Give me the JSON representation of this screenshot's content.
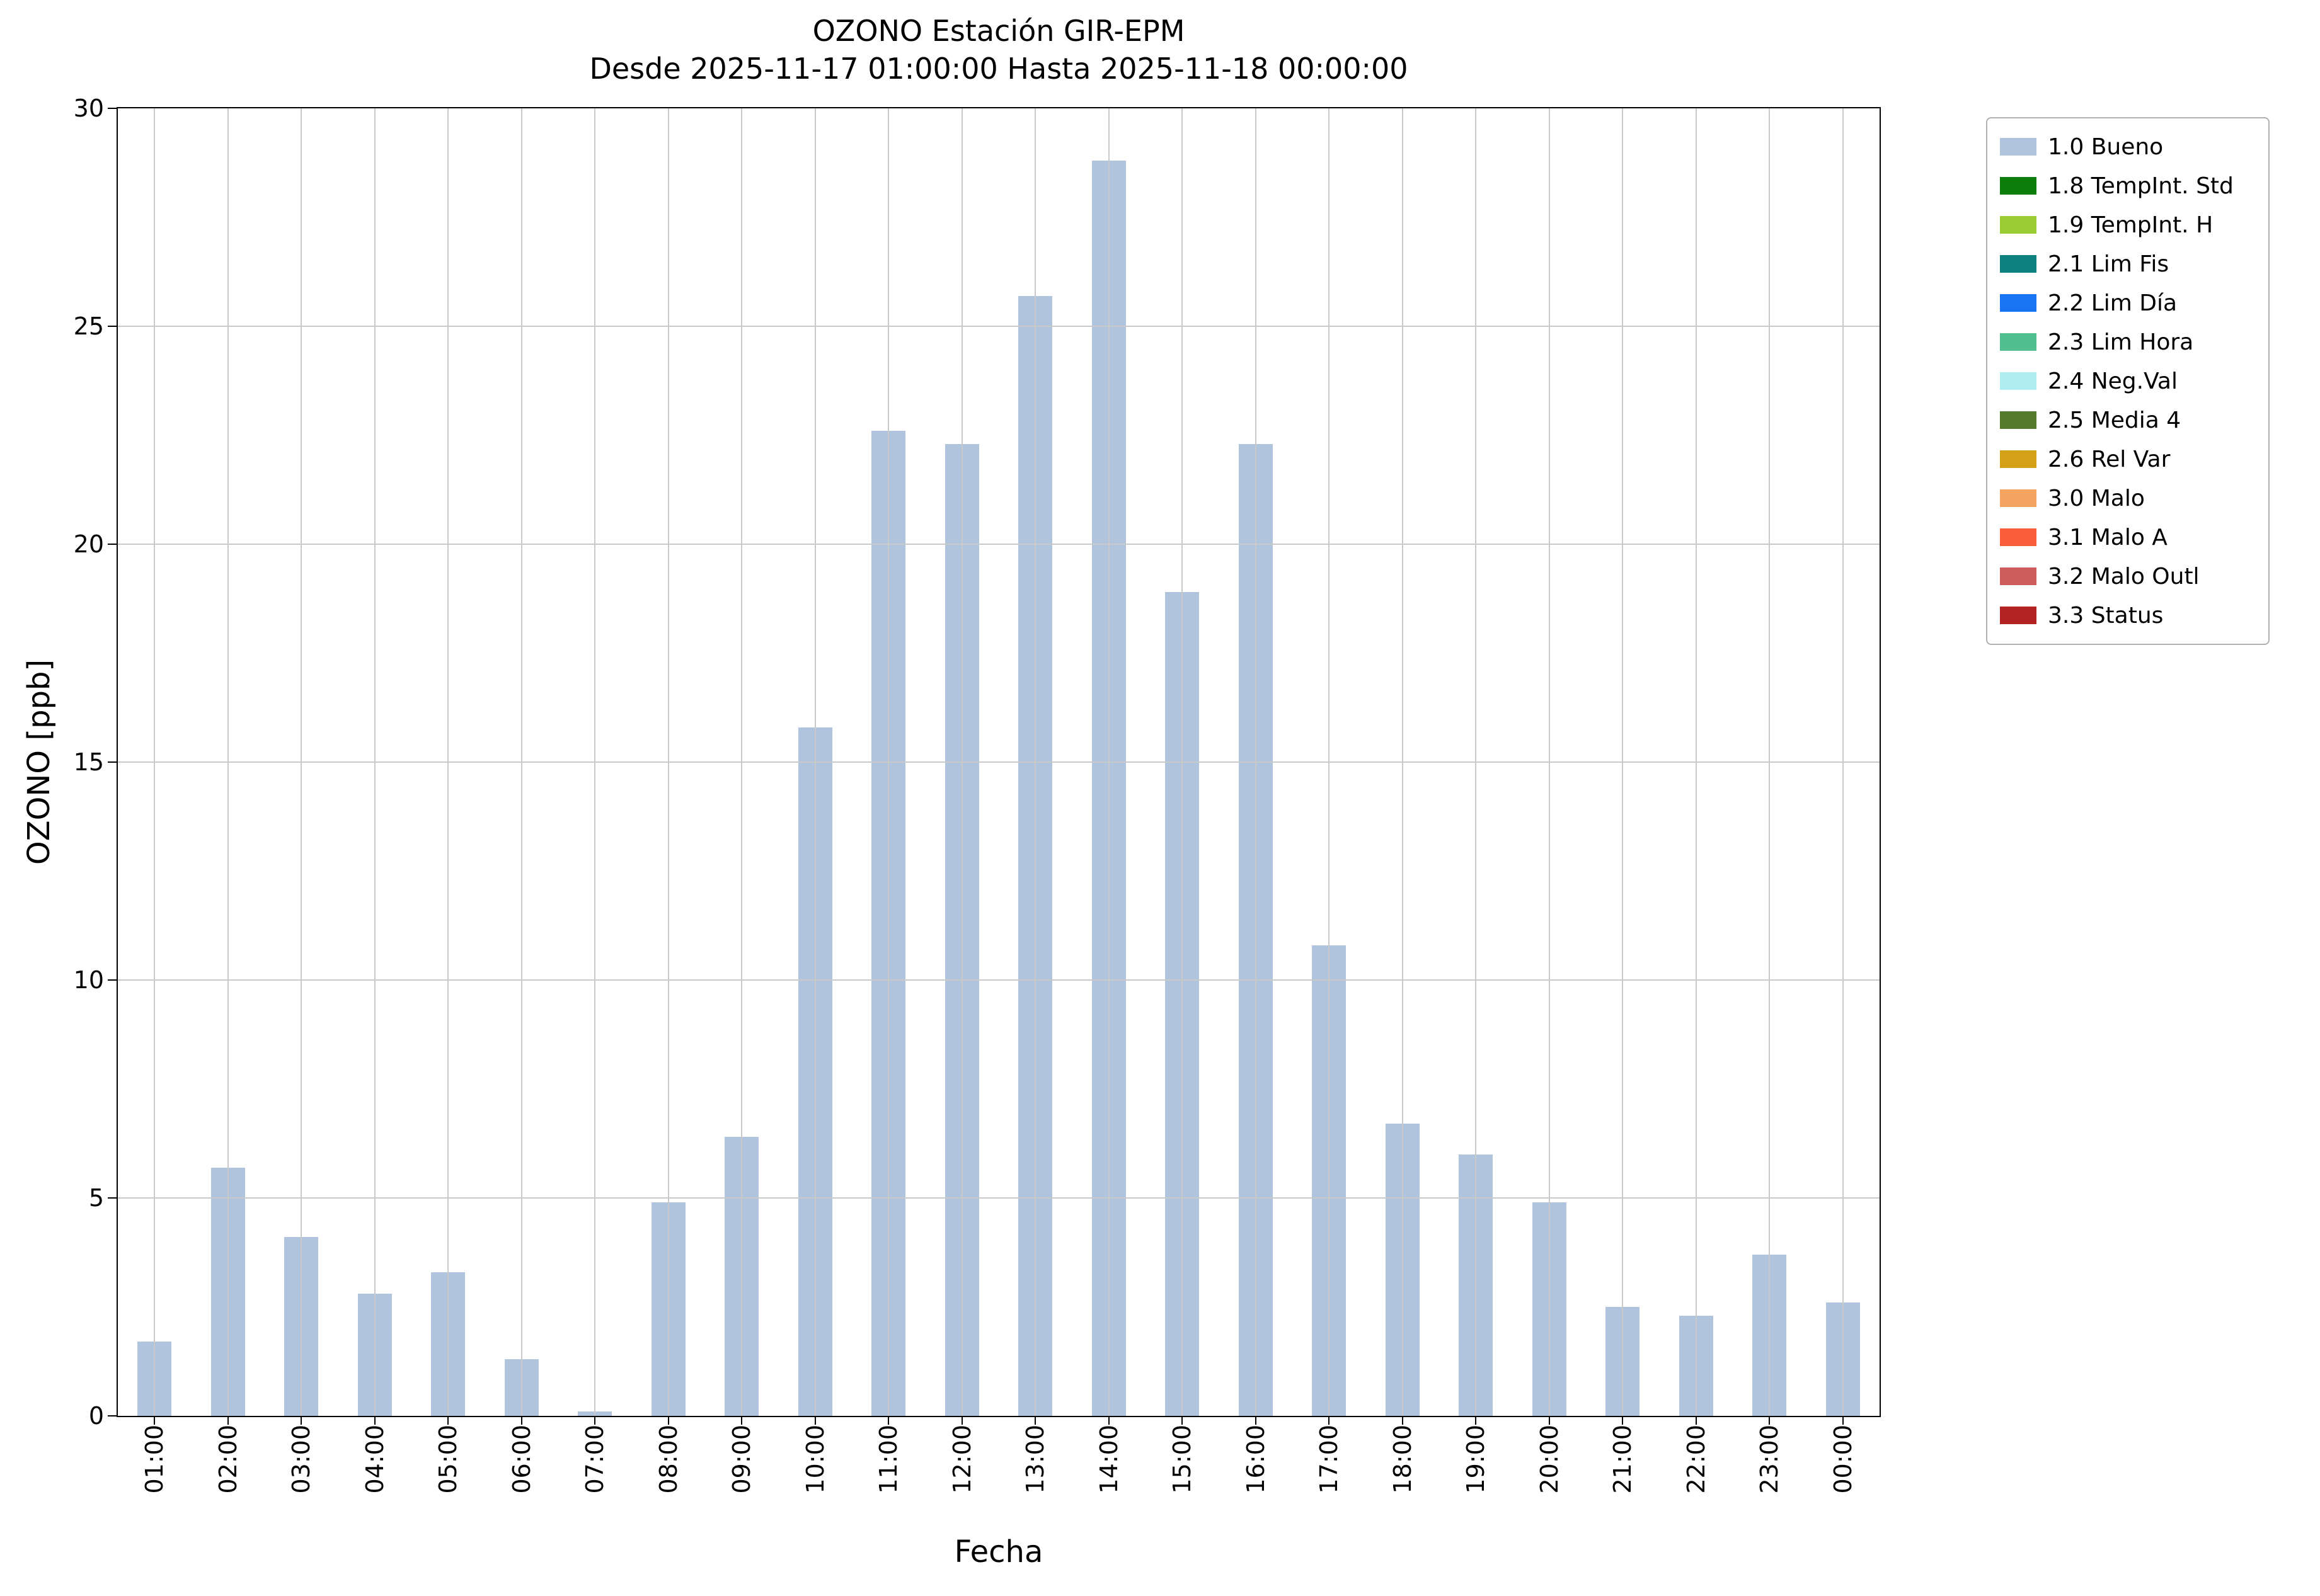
{
  "chart_data": {
    "type": "bar",
    "title": "OZONO Estación GIR-EPM",
    "subtitle": "Desde 2025-11-17 01:00:00 Hasta 2025-11-18 00:00:00",
    "xlabel": "Fecha",
    "ylabel": "OZONO [ppb]",
    "categories": [
      "01:00",
      "02:00",
      "03:00",
      "04:00",
      "05:00",
      "06:00",
      "07:00",
      "08:00",
      "09:00",
      "10:00",
      "11:00",
      "12:00",
      "13:00",
      "14:00",
      "15:00",
      "16:00",
      "17:00",
      "18:00",
      "19:00",
      "20:00",
      "21:00",
      "22:00",
      "23:00",
      "00:00"
    ],
    "values": [
      1.7,
      5.7,
      4.1,
      2.8,
      3.3,
      1.3,
      0.1,
      4.9,
      6.4,
      15.8,
      22.6,
      22.3,
      25.7,
      28.8,
      18.9,
      22.3,
      10.8,
      6.7,
      6.0,
      4.9,
      2.5,
      2.3,
      3.7,
      2.6
    ],
    "ylim": [
      0,
      30
    ],
    "yticks": [
      0,
      5,
      10,
      15,
      20,
      25,
      30
    ],
    "grid": true,
    "bar_color": "#b0c4de",
    "legend_position": "outside-upper-right",
    "legend": [
      {
        "label": "1.0 Bueno",
        "color": "#b0c4de"
      },
      {
        "label": "1.8 TempInt. Std",
        "color": "#0a7d0a"
      },
      {
        "label": "1.9 TempInt. H",
        "color": "#9acd32"
      },
      {
        "label": "2.1 Lim Fis",
        "color": "#0e8080"
      },
      {
        "label": "2.2 Lim Día",
        "color": "#1874f2"
      },
      {
        "label": "2.3 Lim Hora",
        "color": "#52bf90"
      },
      {
        "label": "2.4 Neg.Val",
        "color": "#aeeef0"
      },
      {
        "label": "2.5 Media 4",
        "color": "#557a2b"
      },
      {
        "label": "2.6 Rel Var",
        "color": "#d4a017"
      },
      {
        "label": "3.0 Malo",
        "color": "#f4a460"
      },
      {
        "label": "3.1 Malo A",
        "color": "#f95d3a"
      },
      {
        "label": "3.2 Malo Outl",
        "color": "#cd5c5c"
      },
      {
        "label": "3.3 Status",
        "color": "#b22222"
      }
    ]
  }
}
